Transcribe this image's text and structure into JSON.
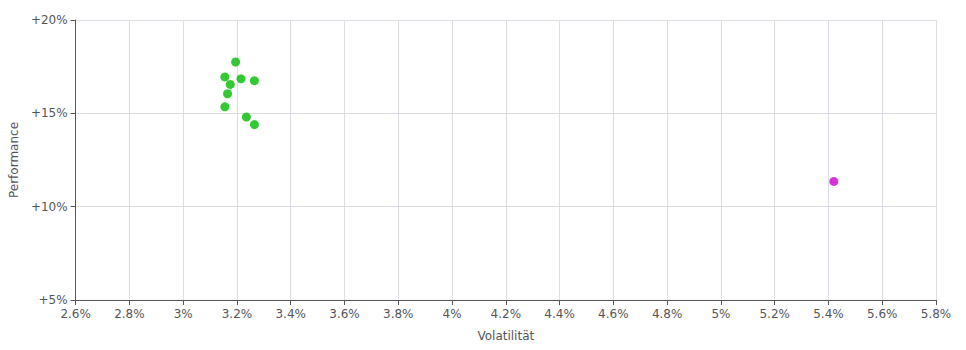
{
  "chart_data": {
    "type": "scatter",
    "xlabel": "Volatilität",
    "ylabel": "Performance",
    "xlim": [
      0.026,
      0.058
    ],
    "ylim": [
      0.05,
      0.2
    ],
    "xticks": [
      {
        "value": 0.026,
        "label": "2.6%"
      },
      {
        "value": 0.028,
        "label": "2.8%"
      },
      {
        "value": 0.03,
        "label": "3%"
      },
      {
        "value": 0.032,
        "label": "3.2%"
      },
      {
        "value": 0.034,
        "label": "3.4%"
      },
      {
        "value": 0.036,
        "label": "3.6%"
      },
      {
        "value": 0.038,
        "label": "3.8%"
      },
      {
        "value": 0.04,
        "label": "4%"
      },
      {
        "value": 0.042,
        "label": "4.2%"
      },
      {
        "value": 0.044,
        "label": "4.4%"
      },
      {
        "value": 0.046,
        "label": "4.6%"
      },
      {
        "value": 0.048,
        "label": "4.8%"
      },
      {
        "value": 0.05,
        "label": "5%"
      },
      {
        "value": 0.052,
        "label": "5.2%"
      },
      {
        "value": 0.054,
        "label": "5.4%"
      },
      {
        "value": 0.056,
        "label": "5.6%"
      },
      {
        "value": 0.058,
        "label": "5.8%"
      }
    ],
    "yticks": [
      {
        "value": 0.05,
        "label": "+5%"
      },
      {
        "value": 0.1,
        "label": "+10%"
      },
      {
        "value": 0.15,
        "label": "+15%"
      },
      {
        "value": 0.2,
        "label": "+20%"
      }
    ],
    "grid": true,
    "series": [
      {
        "color": "#00bb00",
        "values": [
          [
            0.03195,
            0.1775
          ],
          [
            0.03155,
            0.1695
          ],
          [
            0.03215,
            0.1685
          ],
          [
            0.03265,
            0.1675
          ],
          [
            0.03175,
            0.1655
          ],
          [
            0.03165,
            0.1605
          ],
          [
            0.03155,
            0.1535
          ],
          [
            0.03235,
            0.148
          ],
          [
            0.03265,
            0.144
          ]
        ]
      },
      {
        "color": "#cc00cc",
        "values": [
          [
            0.0542,
            0.1135
          ]
        ]
      }
    ]
  }
}
